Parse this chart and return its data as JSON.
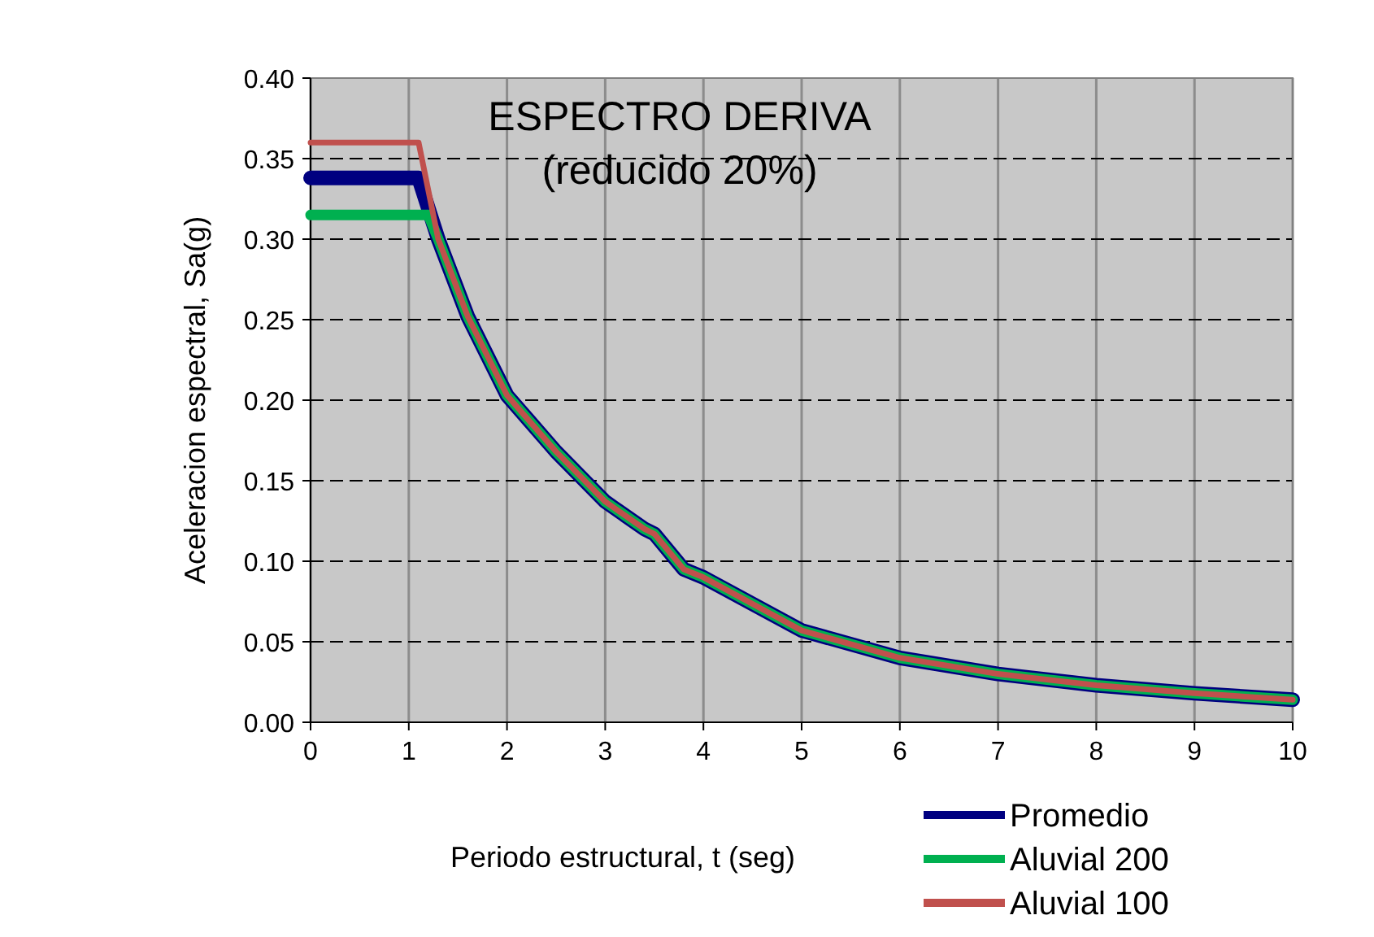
{
  "chart_data": {
    "type": "line",
    "title": "ESPECTRO DERIVA",
    "subtitle": "(reducido 20%)",
    "xlabel": "Periodo estructural, t (seg)",
    "ylabel": "Aceleracion espectral, Sa(g)",
    "xlim": [
      0,
      10
    ],
    "xticks": [
      0,
      1,
      2,
      3,
      4,
      5,
      6,
      7,
      8,
      9,
      10
    ],
    "ylim": [
      0,
      0.4
    ],
    "yticks": [
      {
        "value": 0,
        "label": "0.00"
      },
      {
        "value": 0.05,
        "label": "0.05"
      },
      {
        "value": 0.1,
        "label": "0.10"
      },
      {
        "value": 0.15,
        "label": "0.15"
      },
      {
        "value": 0.2,
        "label": "0.20"
      },
      {
        "value": 0.25,
        "label": "0.25"
      },
      {
        "value": 0.3,
        "label": "0.30"
      },
      {
        "value": 0.35,
        "label": "0.35"
      },
      {
        "value": 0.4,
        "label": "0.40"
      }
    ],
    "grid": true,
    "legend": "bottom right",
    "marker": "none",
    "line_style": "solid",
    "series": [
      {
        "name": "Promedio",
        "color": "#000080",
        "x": [
          0,
          1.1,
          1.3,
          1.6,
          2,
          2.5,
          3,
          3.4,
          3.5,
          3.8,
          4,
          5,
          6,
          7,
          8,
          9,
          10
        ],
        "values": [
          0.338,
          0.338,
          0.3,
          0.252,
          0.203,
          0.168,
          0.137,
          0.12,
          0.117,
          0.095,
          0.09,
          0.057,
          0.04,
          0.03,
          0.023,
          0.018,
          0.014
        ]
      },
      {
        "name": "Aluvial 200",
        "color": "#00b050",
        "x": [
          0,
          1.2,
          1.3,
          1.6,
          2,
          2.5,
          3,
          3.4,
          3.5,
          3.8,
          4,
          5,
          6,
          7,
          8,
          9,
          10
        ],
        "values": [
          0.315,
          0.315,
          0.3,
          0.252,
          0.203,
          0.168,
          0.137,
          0.12,
          0.117,
          0.095,
          0.09,
          0.057,
          0.04,
          0.03,
          0.023,
          0.018,
          0.014
        ]
      },
      {
        "name": "Aluvial 100",
        "color": "#c0504d",
        "x": [
          0,
          1.1,
          1.3,
          1.6,
          2,
          2.5,
          3,
          3.4,
          3.5,
          3.8,
          4,
          5,
          6,
          7,
          8,
          9,
          10
        ],
        "values": [
          0.36,
          0.36,
          0.3,
          0.252,
          0.203,
          0.168,
          0.137,
          0.12,
          0.117,
          0.095,
          0.09,
          0.057,
          0.04,
          0.03,
          0.023,
          0.018,
          0.014
        ]
      }
    ]
  }
}
